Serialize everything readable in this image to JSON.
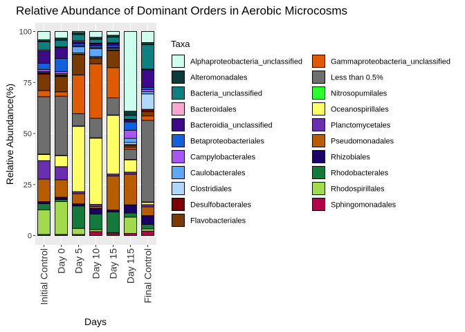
{
  "chart_data": {
    "type": "bar",
    "stacked": true,
    "title": "Relative Abundance of Dominant Orders in Aerobic Microcosms",
    "xlabel": "Days",
    "ylabel": "Relative Abundance(%)",
    "ylim": [
      0,
      100
    ],
    "yticks": [
      0,
      25,
      50,
      75,
      100
    ],
    "grid": true,
    "legend_title": "Taxa",
    "legend_position": "right",
    "categories": [
      "Initial Control",
      "Day 0",
      "Day 5",
      "Day 10",
      "Day 15",
      "Day 115",
      "Final Control"
    ],
    "stack_order_bottom_to_top": [
      "Sphingomonadales",
      "Rhodospirillales",
      "Rhodobacterales",
      "Rhizobiales",
      "Pseudomonadales",
      "Planctomycetales",
      "Oceanospirillales",
      "Nitrosopumilales",
      "Less than 0.5%",
      "Gammaproteobacteria_unclassified",
      "Flavobacteriales",
      "Desulfobacterales",
      "Clostridiales",
      "Caulobacterales",
      "Campylobacterales",
      "Betaproteobacteriales",
      "Bacteroidia_unclassified",
      "Bacteroidales",
      "Bacteria_unclassified",
      "Alteromonadales",
      "Alphaproteobacteria_unclassified"
    ],
    "series": [
      {
        "name": "Alphaproteobacteria_unclassified",
        "color": "#CCFFEE",
        "values": [
          4,
          3,
          0.5,
          3,
          2,
          39,
          5
        ]
      },
      {
        "name": "Alteromonadales",
        "color": "#0B3B3B",
        "values": [
          1,
          1,
          1,
          1,
          1,
          2,
          1
        ]
      },
      {
        "name": "Bacteria_unclassified",
        "color": "#0F8080",
        "values": [
          4,
          3,
          3,
          2,
          3,
          2,
          11
        ]
      },
      {
        "name": "Bacteroidales",
        "color": "#FFA6D2",
        "values": [
          0.5,
          0.3,
          0.5,
          0.3,
          0.3,
          0.3,
          0.3
        ]
      },
      {
        "name": "Bacteroidia_unclassified",
        "color": "#3D0A8A",
        "values": [
          6,
          5,
          1,
          1,
          1,
          1,
          8
        ]
      },
      {
        "name": "Betaproteobacteriales",
        "color": "#1060E0",
        "values": [
          3,
          6,
          1,
          1,
          1,
          4,
          1
        ]
      },
      {
        "name": "Campylobacterales",
        "color": "#A855F7",
        "values": [
          1,
          1,
          0.5,
          0.5,
          0.5,
          4,
          1
        ]
      },
      {
        "name": "Caulobacterales",
        "color": "#5CA8FF",
        "values": [
          0.5,
          0.5,
          3,
          4,
          0.5,
          2,
          1
        ]
      },
      {
        "name": "Clostridiales",
        "color": "#AED8FF",
        "values": [
          0.3,
          0.3,
          0.5,
          0.5,
          0.5,
          1,
          7
        ]
      },
      {
        "name": "Desulfobacterales",
        "color": "#7F0000",
        "values": [
          0.5,
          0.5,
          0.3,
          0.3,
          0.3,
          0.3,
          1
        ]
      },
      {
        "name": "Flavobacteriales",
        "color": "#7A3A00",
        "values": [
          8,
          7,
          10,
          3,
          9,
          1,
          2
        ]
      },
      {
        "name": "Gammaproteobacteria_unclassified",
        "color": "#E05A00",
        "values": [
          3,
          2,
          19,
          28,
          16,
          1,
          2
        ]
      },
      {
        "name": "Less than 0.5%",
        "color": "#6E6E6E",
        "values": [
          28,
          27,
          6,
          10,
          9,
          5,
          37
        ]
      },
      {
        "name": "Nitrosopumilales",
        "color": "#2BFF2B",
        "values": [
          0.2,
          0.2,
          0.2,
          0.2,
          0.2,
          0.2,
          0.2
        ]
      },
      {
        "name": "Oceanospirillales",
        "color": "#FFFF66",
        "values": [
          3,
          5,
          32,
          34,
          31,
          6,
          1
        ]
      },
      {
        "name": "Planctomycetales",
        "color": "#6A2FB0",
        "values": [
          9,
          6,
          1,
          1,
          1,
          1,
          1
        ]
      },
      {
        "name": "Pseudomonadales",
        "color": "#B85C00",
        "values": [
          11,
          8,
          5,
          1,
          18,
          15,
          4
        ]
      },
      {
        "name": "Rhizobiales",
        "color": "#1A0066",
        "values": [
          1,
          1,
          1,
          3,
          1,
          4,
          4
        ]
      },
      {
        "name": "Rhodobacterales",
        "color": "#137A3C",
        "values": [
          3,
          1,
          11,
          8,
          11,
          2,
          2
        ]
      },
      {
        "name": "Rhodospirillales",
        "color": "#A3D94D",
        "values": [
          12,
          15,
          3,
          1,
          0.5,
          8,
          1
        ]
      },
      {
        "name": "Sphingomonadales",
        "color": "#B5004A",
        "values": [
          0.5,
          0.5,
          0.5,
          2,
          1,
          1,
          2
        ]
      }
    ]
  }
}
